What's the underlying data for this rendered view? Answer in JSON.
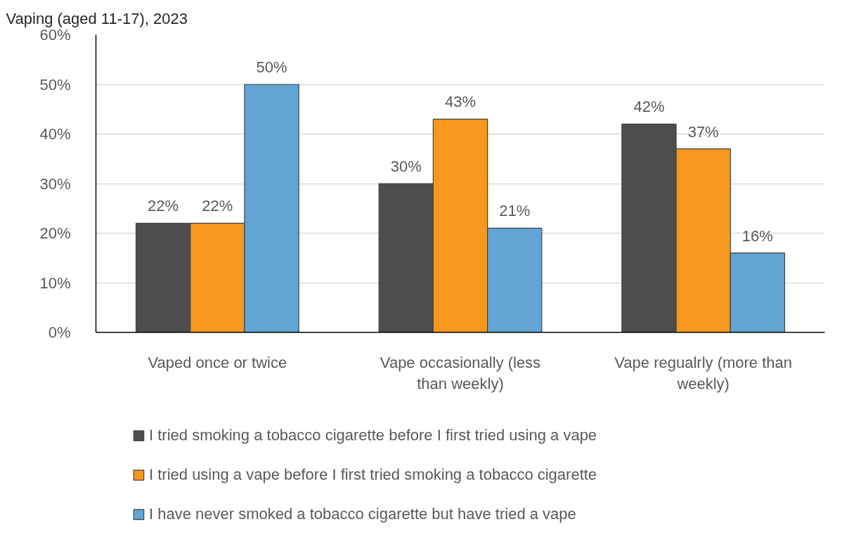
{
  "chart_data": {
    "type": "bar",
    "title": "Vaping (aged 11-17), 2023",
    "categories": [
      "Vaped once or twice",
      "Vape occasionally (less than weekly)",
      "Vape regualrly (more than weekly)"
    ],
    "series": [
      {
        "name": "I tried smoking a tobacco cigarette before I first tried using a vape",
        "color": "#4d4d4d",
        "values": [
          22,
          30,
          42
        ],
        "value_labels": [
          "22%",
          "30%",
          "42%"
        ]
      },
      {
        "name": "I tried using a vape before I first tried smoking a tobacco cigarette",
        "color": "#f7981f",
        "values": [
          22,
          43,
          37
        ],
        "value_labels": [
          "22%",
          "43%",
          "37%"
        ]
      },
      {
        "name": "I have never smoked a tobacco cigarette but have tried a vape",
        "color": "#62a4d4",
        "values": [
          50,
          21,
          16
        ],
        "value_labels": [
          "50%",
          "21%",
          "16%"
        ]
      }
    ],
    "ylim": [
      0,
      60
    ],
    "yticks": [
      {
        "value": 0,
        "label": "0%"
      },
      {
        "value": 10,
        "label": "10%"
      },
      {
        "value": 20,
        "label": "20%"
      },
      {
        "value": 30,
        "label": "30%"
      },
      {
        "value": 40,
        "label": "40%"
      },
      {
        "value": 50,
        "label": "50%"
      },
      {
        "value": 60,
        "label": "60%"
      }
    ],
    "grid": "y",
    "legend": "bottom"
  }
}
